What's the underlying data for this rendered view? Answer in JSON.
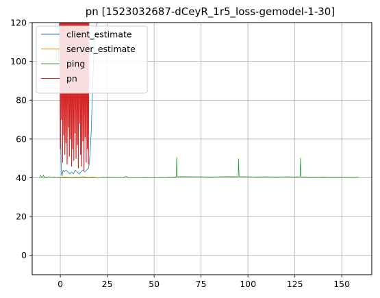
{
  "chart_data": {
    "type": "line",
    "title": "pn [1523032687-dCeyR_1r5_loss-gemodel-1-30]",
    "xlabel": "",
    "ylabel": "",
    "xlim": [
      -15,
      166
    ],
    "ylim": [
      -10,
      120
    ],
    "xticks": [
      0,
      25,
      50,
      75,
      100,
      125,
      150
    ],
    "yticks": [
      0,
      20,
      40,
      60,
      80,
      100,
      120
    ],
    "grid": true,
    "legend_position": "upper-left",
    "series": [
      {
        "name": "client_estimate",
        "color": "#1f77b4",
        "x": [
          -1,
          -0.5,
          0,
          0.2,
          0.5,
          1,
          1.5,
          2,
          3,
          4,
          5,
          6,
          7,
          8,
          9,
          10,
          11,
          12,
          13,
          14,
          15,
          15.5,
          16,
          16.5,
          17,
          17.5,
          18,
          18.5,
          19,
          19.5,
          20
        ],
        "y": [
          100,
          125,
          150,
          60,
          42,
          41,
          44,
          43,
          44,
          43,
          42,
          43,
          42,
          44,
          43,
          42,
          43,
          44,
          43,
          44,
          45,
          48,
          55,
          65,
          80,
          95,
          105,
          112,
          117,
          119,
          121
        ]
      },
      {
        "name": "server_estimate",
        "color": "#ff7f0e",
        "x": [
          0,
          5,
          10,
          15,
          20
        ],
        "y": [
          40,
          40,
          40,
          40,
          40
        ]
      },
      {
        "name": "ping",
        "color": "#2ca02c",
        "x": [
          -11,
          -10.5,
          -10,
          -9.5,
          -9,
          -8.5,
          -8,
          -7,
          -6,
          -5,
          -4,
          -3,
          -2,
          -1,
          0,
          2,
          5,
          8,
          10,
          12,
          15,
          17,
          20,
          25,
          30,
          34,
          35,
          36,
          40,
          45,
          50,
          55,
          60,
          61.8,
          62,
          62.3,
          65,
          70,
          75,
          80,
          85,
          90,
          94.8,
          95,
          95.3,
          100,
          105,
          110,
          115,
          120,
          125,
          127.8,
          128,
          128.3,
          130,
          135,
          140,
          145,
          150,
          155,
          159
        ],
        "y": [
          40.2,
          41.2,
          40.3,
          40.5,
          41.3,
          40.2,
          40.4,
          40.3,
          40.6,
          40.3,
          40.2,
          40.4,
          40.1,
          40.3,
          40.2,
          40.4,
          40.1,
          40.3,
          40.2,
          40.5,
          40.1,
          40.3,
          40,
          40.2,
          40.1,
          40.2,
          40.8,
          40.1,
          40,
          40.1,
          40,
          40.1,
          40.3,
          40.4,
          50.5,
          40.5,
          40.6,
          40.5,
          40.5,
          40.4,
          40.5,
          40.6,
          40.5,
          49.8,
          40.6,
          40.5,
          40.4,
          40.5,
          40.4,
          40.5,
          40.4,
          40.5,
          50.2,
          40.4,
          40.4,
          40.3,
          40.4,
          40.3,
          40.3,
          40.2,
          40.2
        ]
      },
      {
        "name": "pn",
        "color": "#d62728",
        "x": [
          -0.3,
          0,
          0.3,
          0.6,
          0.9,
          1.2,
          1.5,
          1.8,
          2.1,
          2.4,
          2.7,
          3.0,
          3.3,
          3.6,
          3.9,
          4.2,
          4.5,
          4.8,
          5.1,
          5.4,
          5.7,
          6.0,
          6.3,
          6.6,
          6.9,
          7.2,
          7.5,
          7.8,
          8.1,
          8.4,
          8.7,
          9.0,
          9.3,
          9.6,
          9.9,
          10.2,
          10.5,
          10.8,
          11.1,
          11.4,
          11.7,
          12.0,
          12.3,
          12.6,
          12.9,
          13.2,
          13.5,
          13.8,
          14.1,
          14.4,
          14.7,
          15.0,
          15.3
        ],
        "y": [
          150,
          55,
          150,
          70,
          150,
          48,
          150,
          62,
          150,
          52,
          150,
          58,
          150,
          47,
          150,
          66,
          150,
          51,
          150,
          60,
          150,
          46,
          150,
          55,
          150,
          49,
          150,
          63,
          150,
          50,
          150,
          57,
          150,
          45,
          150,
          68,
          150,
          52,
          150,
          46,
          150,
          59,
          150,
          44,
          150,
          61,
          150,
          48,
          150,
          55,
          150,
          47,
          150
        ]
      }
    ]
  }
}
